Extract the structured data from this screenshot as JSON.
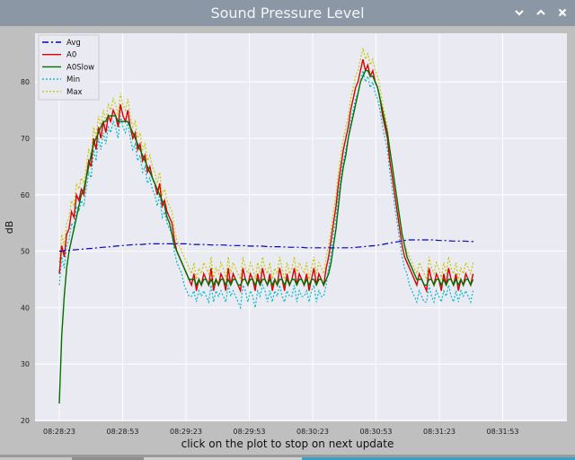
{
  "window": {
    "title": "Sound Pressure Level",
    "minimize_icon": "chevron-down-icon",
    "maximize_icon": "chevron-up-icon",
    "close_icon": "close-icon"
  },
  "status_text": "click on the plot to stop on next update",
  "colors": {
    "plot_background": "#eaeaf2",
    "figure_background": "#bfbfbf",
    "titlebar": "#8b97a5"
  },
  "chart_data": {
    "type": "line",
    "title": "",
    "xlabel": "",
    "ylabel": "dB",
    "xlim": [
      0,
      196
    ],
    "ylim": [
      20,
      87
    ],
    "grid": true,
    "legend_position": "top-left",
    "x_ticks": [
      {
        "x": 0,
        "label": "08:28:23"
      },
      {
        "x": 30,
        "label": "08:28:53"
      },
      {
        "x": 60,
        "label": "08:29:23"
      },
      {
        "x": 90,
        "label": "08:29:53"
      },
      {
        "x": 120,
        "label": "08:30:23"
      },
      {
        "x": 150,
        "label": "08:30:53"
      },
      {
        "x": 180,
        "label": "08:31:23"
      },
      {
        "x": 210,
        "label": "08:31:53"
      }
    ],
    "y_ticks": [
      20,
      30,
      40,
      50,
      60,
      70,
      80
    ],
    "x_interval_seconds": 1,
    "series": [
      {
        "name": "Avg",
        "color": "#0000cc",
        "style": "dashdot",
        "values": [
          50.0,
          50.0,
          50.1,
          50.2,
          50.3,
          50.4,
          50.5,
          50.6,
          50.7,
          50.8,
          50.9,
          51.0,
          51.1,
          51.2,
          51.2,
          51.3,
          51.3,
          51.3,
          51.3,
          51.3,
          51.3,
          51.3,
          51.2,
          51.2,
          51.2,
          51.1,
          51.1,
          51.1,
          51.0,
          51.0,
          51.0,
          50.9,
          50.9,
          50.9,
          50.8,
          50.8,
          50.8,
          50.7,
          50.7,
          50.7,
          50.6,
          50.6,
          50.6,
          50.6,
          50.6,
          50.6,
          50.6,
          50.6,
          50.7,
          50.8,
          50.9,
          51.0,
          51.2,
          51.4,
          51.6,
          51.8,
          52.0,
          52.0,
          52.0,
          52.0,
          52.0,
          51.9,
          51.9,
          51.8,
          51.8,
          51.8,
          51.7,
          51.7,
          51.7,
          51.6,
          51.6,
          51.6,
          51.5,
          51.5,
          51.5
        ],
        "x": [
          0,
          1,
          3,
          6,
          9,
          12,
          15,
          18,
          21,
          24,
          27,
          30,
          33,
          36,
          39,
          42,
          45,
          48,
          51,
          54,
          57,
          60,
          63,
          66,
          69,
          72,
          75,
          78,
          81,
          84,
          87,
          90,
          93,
          96,
          99,
          102,
          105,
          108,
          111,
          114,
          117,
          120,
          123,
          126,
          129,
          132,
          135,
          138,
          141,
          144,
          147,
          150,
          153,
          156,
          159,
          162,
          165,
          168,
          171,
          174,
          177,
          180,
          183,
          186,
          189,
          192,
          195,
          196,
          196,
          196,
          196,
          196,
          196,
          196,
          196
        ]
      },
      {
        "name": "A0",
        "color": "#dd0000",
        "style": "solid",
        "values": [
          46,
          51,
          49,
          53,
          54,
          57,
          56,
          60,
          59,
          61,
          60,
          63,
          66,
          65,
          70,
          68,
          72,
          70,
          73,
          71,
          74,
          73,
          75,
          74,
          72,
          76,
          74,
          73,
          75,
          72,
          70,
          71,
          68,
          69,
          66,
          67,
          64,
          65,
          63,
          62,
          60,
          62,
          58,
          59,
          57,
          56,
          55,
          52,
          50,
          49,
          48,
          47,
          46,
          45,
          44,
          46,
          43,
          45,
          44,
          46,
          45,
          44,
          47,
          43,
          45,
          44,
          46,
          45,
          43,
          47,
          44,
          46,
          45,
          44,
          43,
          47,
          45,
          44,
          46,
          45,
          43,
          46,
          44,
          47,
          45,
          44,
          46,
          43,
          45,
          44,
          47,
          45,
          43,
          46,
          44,
          45,
          47,
          44,
          46,
          45,
          44,
          46,
          43,
          45,
          47,
          44,
          46,
          45,
          44,
          47,
          49,
          52,
          55,
          58,
          62,
          65,
          68,
          70,
          72,
          75,
          77,
          79,
          80,
          82,
          84,
          82,
          83,
          81,
          82,
          80,
          79,
          77,
          74,
          72,
          70,
          66,
          63,
          60,
          57,
          54,
          51,
          49,
          48,
          47,
          46,
          45,
          44,
          46,
          45,
          44,
          43,
          47,
          45,
          44,
          46,
          45,
          43,
          46,
          44,
          47,
          45,
          44,
          46,
          43,
          45,
          44,
          46,
          45,
          44,
          46
        ]
      },
      {
        "name": "A0Slow",
        "color": "#007000",
        "style": "solid",
        "values": [
          23,
          35,
          42,
          47,
          50,
          52,
          54,
          56,
          58,
          60,
          61,
          63,
          65,
          67,
          69,
          70,
          71,
          72,
          73,
          73,
          74,
          74,
          74,
          74,
          73,
          73,
          73,
          73,
          73,
          72,
          71,
          70,
          69,
          68,
          67,
          66,
          65,
          64,
          63,
          62,
          61,
          60,
          59,
          58,
          56,
          55,
          53,
          51,
          50,
          49,
          48,
          47,
          46,
          45,
          45,
          45,
          44,
          45,
          44,
          45,
          45,
          44,
          45,
          44,
          45,
          44,
          45,
          45,
          44,
          45,
          44,
          45,
          45,
          44,
          44,
          45,
          45,
          44,
          45,
          45,
          44,
          45,
          44,
          45,
          45,
          44,
          45,
          44,
          45,
          44,
          45,
          45,
          44,
          45,
          44,
          45,
          45,
          44,
          45,
          45,
          44,
          45,
          44,
          45,
          45,
          44,
          45,
          45,
          44,
          45,
          46,
          48,
          51,
          54,
          58,
          62,
          65,
          67,
          70,
          72,
          74,
          76,
          78,
          80,
          81,
          82,
          82,
          81,
          81,
          80,
          79,
          77,
          75,
          73,
          71,
          68,
          65,
          62,
          59,
          56,
          53,
          51,
          49,
          48,
          47,
          46,
          45,
          45,
          45,
          44,
          44,
          45,
          45,
          44,
          45,
          45,
          44,
          45,
          44,
          45,
          45,
          44,
          45,
          44,
          45,
          44,
          45,
          45,
          44,
          45
        ]
      },
      {
        "name": "Min",
        "color": "#00bbcc",
        "style": "dotted",
        "values": [
          44,
          49,
          47,
          51,
          52,
          55,
          54,
          58,
          57,
          59,
          58,
          61,
          64,
          63,
          68,
          66,
          70,
          68,
          71,
          69,
          72,
          71,
          73,
          72,
          70,
          74,
          72,
          71,
          73,
          70,
          68,
          69,
          66,
          67,
          64,
          65,
          62,
          63,
          61,
          60,
          58,
          60,
          56,
          57,
          55,
          54,
          53,
          50,
          48,
          47,
          46,
          44,
          43,
          42,
          42,
          43,
          41,
          43,
          42,
          43,
          42,
          41,
          44,
          41,
          43,
          42,
          43,
          42,
          41,
          44,
          42,
          43,
          42,
          41,
          40,
          44,
          43,
          41,
          43,
          42,
          40,
          43,
          42,
          44,
          43,
          41,
          43,
          41,
          43,
          42,
          44,
          42,
          41,
          43,
          42,
          42,
          44,
          41,
          43,
          42,
          42,
          43,
          41,
          43,
          44,
          41,
          43,
          42,
          42,
          44,
          47,
          50,
          53,
          56,
          60,
          63,
          66,
          68,
          70,
          73,
          75,
          77,
          78,
          80,
          82,
          80,
          81,
          79,
          80,
          78,
          77,
          75,
          72,
          70,
          68,
          64,
          61,
          58,
          55,
          52,
          49,
          47,
          46,
          44,
          43,
          42,
          41,
          43,
          42,
          41,
          41,
          44,
          42,
          41,
          43,
          42,
          41,
          43,
          42,
          44,
          42,
          41,
          43,
          41,
          43,
          42,
          43,
          42,
          41,
          43
        ]
      },
      {
        "name": "Max",
        "color": "#c8c800",
        "style": "dotted",
        "values": [
          48,
          53,
          51,
          55,
          56,
          59,
          58,
          62,
          61,
          63,
          62,
          65,
          68,
          67,
          72,
          70,
          74,
          72,
          75,
          73,
          76,
          75,
          77,
          76,
          74,
          78,
          76,
          75,
          77,
          74,
          72,
          73,
          70,
          71,
          68,
          69,
          66,
          67,
          65,
          64,
          62,
          64,
          60,
          61,
          59,
          58,
          57,
          54,
          52,
          51,
          50,
          49,
          48,
          47,
          46,
          48,
          45,
          47,
          46,
          48,
          47,
          46,
          49,
          45,
          47,
          46,
          48,
          47,
          45,
          49,
          46,
          48,
          47,
          46,
          45,
          49,
          47,
          46,
          48,
          47,
          45,
          48,
          46,
          49,
          47,
          46,
          48,
          45,
          47,
          46,
          49,
          47,
          45,
          48,
          46,
          47,
          49,
          46,
          48,
          47,
          46,
          48,
          45,
          47,
          49,
          46,
          48,
          47,
          46,
          49,
          51,
          54,
          57,
          60,
          64,
          67,
          70,
          72,
          74,
          77,
          79,
          81,
          82,
          84,
          86,
          84,
          85,
          83,
          84,
          82,
          81,
          79,
          76,
          74,
          72,
          68,
          65,
          62,
          59,
          56,
          53,
          51,
          50,
          49,
          48,
          47,
          46,
          48,
          47,
          46,
          45,
          49,
          47,
          46,
          48,
          47,
          45,
          48,
          46,
          49,
          47,
          46,
          48,
          45,
          47,
          46,
          48,
          47,
          46,
          48
        ]
      }
    ]
  }
}
